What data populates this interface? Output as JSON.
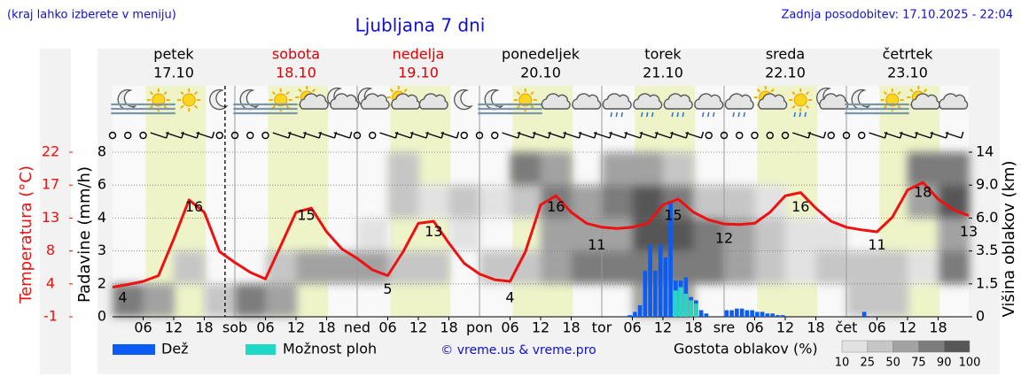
{
  "header": {
    "hint": "(kraj lahko izberete v meniju)",
    "title": "Ljubljana 7 dni",
    "updated": "Zadnja posodobitev: 17.10.2025 - 22:04"
  },
  "days": [
    {
      "name": "petek",
      "date": "17.10",
      "color": "#000000"
    },
    {
      "name": "sobota",
      "date": "18.10",
      "color": "#dd0000"
    },
    {
      "name": "nedelja",
      "date": "19.10",
      "color": "#dd0000"
    },
    {
      "name": "ponedeljek",
      "date": "20.10",
      "color": "#000000"
    },
    {
      "name": "torek",
      "date": "21.10",
      "color": "#000000"
    },
    {
      "name": "sreda",
      "date": "22.10",
      "color": "#000000"
    },
    {
      "name": "četrtek",
      "date": "23.10",
      "color": "#000000"
    }
  ],
  "chart_data": {
    "type": "meteogram",
    "xlim": [
      0,
      168
    ],
    "xticks": [
      {
        "value": 6,
        "label": "06"
      },
      12,
      18,
      {
        "value": 24,
        "label": "sob"
      },
      {
        "value": 30,
        "label": "06"
      },
      {
        "value": 36,
        "label": "12"
      },
      {
        "value": 42,
        "label": "18"
      },
      {
        "value": 48,
        "label": "ned"
      },
      {
        "value": 54,
        "label": "06"
      },
      {
        "value": 60,
        "label": "12"
      },
      {
        "value": 66,
        "label": "18"
      },
      {
        "value": 72,
        "label": "pon"
      },
      {
        "value": 78,
        "label": "06"
      },
      {
        "value": 84,
        "label": "12"
      },
      {
        "value": 90,
        "label": "18"
      },
      {
        "value": 96,
        "label": "tor"
      },
      {
        "value": 102,
        "label": "06"
      },
      {
        "value": 108,
        "label": "12"
      },
      {
        "value": 114,
        "label": "18"
      },
      {
        "value": 120,
        "label": "sre"
      },
      {
        "value": 126,
        "label": "06"
      },
      {
        "value": 132,
        "label": "12"
      },
      {
        "value": 138,
        "label": "18"
      },
      {
        "value": 144,
        "label": "čet"
      },
      {
        "value": 150,
        "label": "06"
      },
      {
        "value": 156,
        "label": "12"
      },
      {
        "value": 162,
        "label": "18"
      }
    ],
    "now": 22.07,
    "day_shading": {
      "from": 6.5,
      "to": 18.3,
      "color": "#eef4c8"
    },
    "temperature": {
      "name": "Temperatura (°C)",
      "color": "#ee1111",
      "ylim": [
        -1,
        22
      ],
      "yticks": [
        -1,
        4,
        8,
        13,
        17,
        22
      ],
      "x": [
        0,
        3,
        6,
        9,
        12,
        15,
        18,
        21,
        24,
        27,
        30,
        33,
        36,
        39,
        42,
        45,
        48,
        51,
        54,
        57,
        60,
        63,
        66,
        69,
        72,
        75,
        78,
        81,
        84,
        87,
        90,
        93,
        96,
        99,
        102,
        105,
        108,
        111,
        114,
        117,
        120,
        123,
        126,
        129,
        132,
        135,
        138,
        141,
        144,
        147,
        150,
        153,
        156,
        159,
        162,
        165,
        168
      ],
      "values": [
        3.5,
        3.9,
        4.3,
        5.0,
        9.8,
        15.2,
        13.7,
        7.9,
        6.6,
        5.4,
        4.6,
        8.8,
        13.7,
        14.2,
        10.9,
        8.3,
        7.1,
        5.7,
        5.0,
        7.9,
        12.2,
        12.5,
        9.2,
        6.5,
        5.2,
        4.5,
        4.3,
        7.9,
        14.6,
        15.7,
        13.7,
        12.2,
        11.6,
        11.4,
        11.6,
        12.2,
        14.6,
        15.3,
        13.7,
        12.7,
        12.1,
        12.0,
        12.2,
        13.7,
        15.7,
        16.1,
        14.2,
        12.5,
        11.6,
        11.2,
        10.9,
        13.1,
        16.4,
        17.4,
        15.3,
        14.0,
        13.3
      ],
      "extremes": {
        "x": [
          2,
          16,
          38,
          54,
          63,
          78,
          87,
          95,
          110,
          120,
          135,
          150,
          159,
          168
        ],
        "values": [
          4,
          16,
          15,
          5,
          13,
          4,
          16,
          11,
          15,
          12,
          16,
          11,
          18,
          13
        ]
      }
    },
    "precipitation": {
      "name": "Padavine (mm/h)",
      "ylim": [
        0,
        8
      ],
      "yticks": [
        0,
        2,
        3,
        4,
        6,
        8
      ],
      "x": [
        101,
        102,
        103,
        104,
        105,
        106,
        107,
        108,
        109,
        110,
        111,
        112,
        113,
        114,
        115,
        116,
        120,
        121,
        122,
        123,
        124,
        125,
        126,
        127,
        128,
        129,
        130,
        131,
        147
      ],
      "series": [
        {
          "name": "Dež",
          "color": "#0a5cf5",
          "values": [
            0.1,
            0.3,
            0.7,
            2.4,
            3.2,
            2.4,
            3.2,
            2.8,
            5.0,
            2.1,
            2.1,
            2.2,
            1.2,
            1.0,
            0.4,
            0.2,
            0.4,
            0.4,
            0.5,
            0.5,
            0.4,
            0.4,
            0.3,
            0.3,
            0.2,
            0.2,
            0.1,
            0.1,
            0.3
          ]
        },
        {
          "name": "Možnost ploh",
          "color": "#1fd8c6",
          "values": [
            null,
            null,
            null,
            null,
            null,
            null,
            null,
            null,
            null,
            1.6,
            1.8,
            1.4,
            1.0,
            0.8,
            null,
            null,
            null,
            null,
            null,
            null,
            null,
            null,
            null,
            null,
            null,
            null,
            null,
            null,
            null
          ]
        }
      ]
    },
    "clouds": {
      "name": "Višina oblakov (km)",
      "ylim": [
        0,
        14
      ],
      "yticks": [
        0,
        1.5,
        3.5,
        {
          "value": 6,
          "label": "6.0"
        },
        {
          "value": 9,
          "label": "9.0"
        },
        14
      ],
      "x": [
        0,
        6,
        12,
        18,
        24,
        30,
        36,
        42,
        48,
        54,
        60,
        66,
        72,
        78,
        84,
        90,
        96,
        102,
        108,
        114,
        120,
        126,
        132,
        138,
        144,
        150,
        156,
        162
      ],
      "levels": [
        0,
        1.5,
        3.5,
        6,
        9
      ],
      "density": [
        [
          75,
          50,
          0,
          25,
          75,
          50,
          0,
          0,
          0,
          0,
          0,
          0,
          0,
          0,
          0,
          0,
          0,
          50,
          50,
          0,
          0,
          0,
          0,
          0,
          25,
          25,
          0,
          0
        ],
        [
          0,
          0,
          25,
          0,
          0,
          25,
          50,
          50,
          50,
          25,
          25,
          0,
          25,
          25,
          50,
          75,
          75,
          75,
          75,
          75,
          50,
          25,
          10,
          25,
          25,
          25,
          10,
          75
        ],
        [
          0,
          0,
          0,
          0,
          0,
          0,
          0,
          0,
          10,
          0,
          0,
          10,
          0,
          0,
          50,
          50,
          50,
          90,
          90,
          75,
          50,
          25,
          10,
          10,
          0,
          0,
          0,
          50
        ],
        [
          0,
          0,
          0,
          0,
          0,
          0,
          0,
          0,
          0,
          25,
          10,
          25,
          10,
          25,
          75,
          50,
          75,
          90,
          75,
          25,
          25,
          10,
          0,
          0,
          0,
          0,
          50,
          90
        ],
        [
          0,
          0,
          0,
          0,
          0,
          0,
          0,
          0,
          0,
          25,
          0,
          0,
          0,
          75,
          50,
          0,
          50,
          50,
          25,
          0,
          0,
          0,
          0,
          0,
          0,
          0,
          75,
          75
        ]
      ],
      "legend_title": "Gostota oblakov (%)",
      "legend_ticks": [
        10,
        25,
        50,
        75,
        90,
        100
      ],
      "legend_colors": [
        "#e2e2e2",
        "#c6c6c6",
        "#a2a2a2",
        "#7c7c7c",
        "#565656"
      ]
    },
    "credit": "© vreme.us & vreme.pro"
  }
}
